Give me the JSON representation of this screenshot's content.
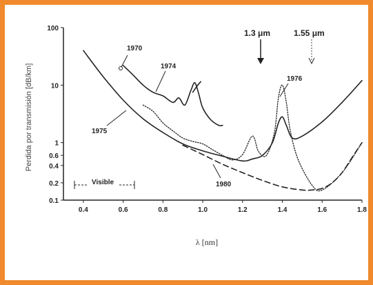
{
  "chart_data": {
    "type": "line",
    "title": "",
    "xlabel": "λ [nm]",
    "ylabel": "Perdida por transmisión [dB/km]",
    "xlim": [
      0.3,
      1.8
    ],
    "ylim": [
      0.1,
      100
    ],
    "yscale": "log",
    "x_ticks": [
      "0.4",
      "0.6",
      "0.8",
      "1.0",
      "1.2",
      "1.4",
      "1.6",
      "1.8"
    ],
    "x_tick_values": [
      0.4,
      0.6,
      0.8,
      1.0,
      1.2,
      1.4,
      1.6,
      1.8
    ],
    "y_ticks": [
      "100",
      "10",
      "1",
      "0.6",
      "0.4",
      "0.2",
      "0.1"
    ],
    "y_tick_values": [
      100,
      10,
      1,
      0.6,
      0.4,
      0.2,
      0.1
    ],
    "grid": false,
    "series": [
      {
        "name": "1970",
        "style": "solid",
        "x": [
          0.95,
          0.97,
          0.99
        ],
        "y": [
          7.5,
          9.5,
          11.5
        ]
      },
      {
        "name": "1974",
        "style": "solid",
        "x": [
          0.6,
          0.65,
          0.7,
          0.75,
          0.8,
          0.85,
          0.88,
          0.91,
          0.94,
          0.96,
          0.98,
          1.0,
          1.04,
          1.08,
          1.1
        ],
        "y": [
          22,
          15,
          10,
          7.5,
          6.5,
          5,
          6,
          4.5,
          8,
          11,
          7,
          4,
          2.5,
          2.0,
          2.0
        ]
      },
      {
        "name": "1975",
        "style": "solid",
        "x": [
          0.4,
          0.5,
          0.6,
          0.7,
          0.8,
          0.9,
          1.0,
          1.1,
          1.2,
          1.25,
          1.3,
          1.35,
          1.38,
          1.4,
          1.42,
          1.45,
          1.5,
          1.6,
          1.7,
          1.8
        ],
        "y": [
          40,
          14,
          5.5,
          2.6,
          1.5,
          0.95,
          0.72,
          0.58,
          0.48,
          0.52,
          0.6,
          1.0,
          2.2,
          2.8,
          2.0,
          1.2,
          1.3,
          2.3,
          5,
          12
        ]
      },
      {
        "name": "1976",
        "style": "dotted",
        "x": [
          0.7,
          0.75,
          0.8,
          0.85,
          0.9,
          0.95,
          1.0,
          1.05,
          1.1,
          1.15,
          1.2,
          1.25,
          1.28,
          1.32,
          1.36,
          1.38,
          1.4,
          1.42,
          1.44,
          1.48,
          1.55,
          1.6,
          1.7,
          1.8
        ],
        "y": [
          4.5,
          3.5,
          2.2,
          1.6,
          1.2,
          1.05,
          0.95,
          0.75,
          0.6,
          0.5,
          0.62,
          1.3,
          0.7,
          0.6,
          1.5,
          6,
          10,
          5,
          1.6,
          0.5,
          0.18,
          0.15,
          0.3,
          1.0
        ]
      },
      {
        "name": "1980",
        "style": "dashed",
        "x": [
          0.9,
          1.0,
          1.1,
          1.2,
          1.3,
          1.4,
          1.5,
          1.55,
          1.6,
          1.65,
          1.7,
          1.75,
          1.8
        ],
        "y": [
          0.9,
          0.62,
          0.42,
          0.3,
          0.22,
          0.17,
          0.15,
          0.15,
          0.16,
          0.2,
          0.3,
          0.55,
          1.0
        ]
      }
    ],
    "annotations": {
      "wavelength_13": "1.3 μm",
      "wavelength_155": "1.55 μm",
      "visible": "Visible",
      "year_1970": "1970",
      "year_1974": "1974",
      "year_1975": "1975",
      "year_1976": "1976",
      "year_1980": "1980"
    },
    "colors": {
      "border": "#f08a2c",
      "line": "#222222",
      "background": "#ffffff"
    }
  }
}
